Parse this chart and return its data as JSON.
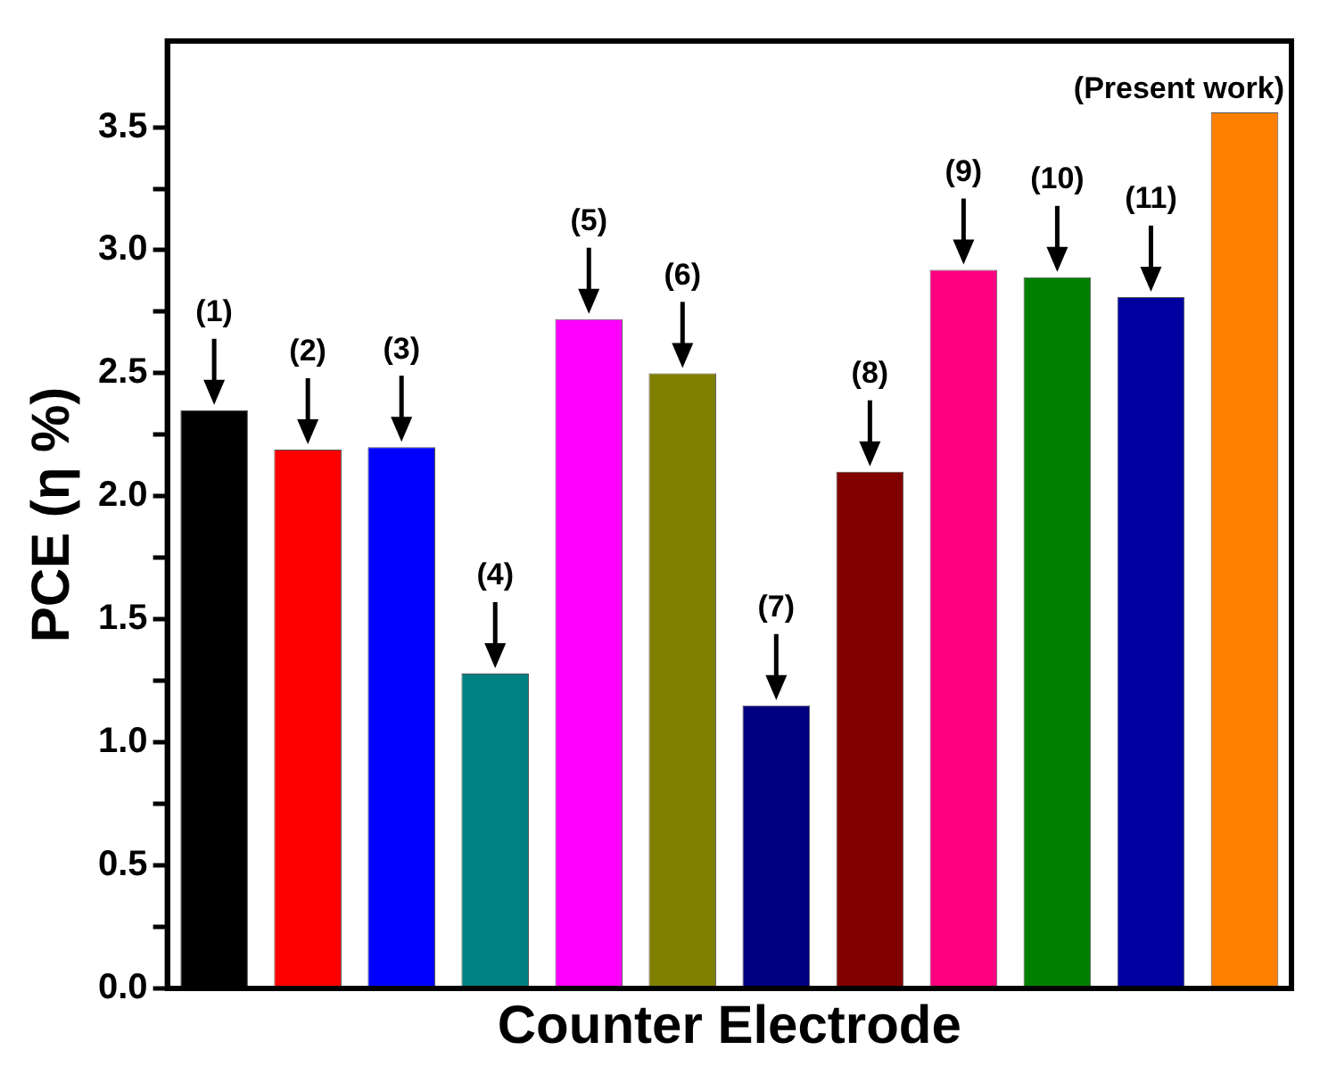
{
  "chart_data": {
    "type": "bar",
    "xlabel": "Counter Electrode",
    "ylabel": "PCE (η %)",
    "categories": [
      null,
      null,
      null,
      null,
      null,
      null,
      null,
      null,
      null,
      null,
      null,
      null
    ],
    "values": [
      2.35,
      2.19,
      2.2,
      1.28,
      2.72,
      2.5,
      1.15,
      2.1,
      2.92,
      2.89,
      2.81,
      3.56
    ],
    "colors": [
      "#000000",
      "#ff0000",
      "#0000ff",
      "#008080",
      "#ff00ff",
      "#808000",
      "#000080",
      "#800000",
      "#ff0080",
      "#008000",
      "#0000a0",
      "#ff8000"
    ],
    "ylim": [
      0,
      3.85
    ],
    "yticks": [
      {
        "value": 0,
        "label": "0.0"
      },
      {
        "value": 0.25,
        "label": null
      },
      {
        "value": 0.5,
        "label": "0.5"
      },
      {
        "value": 0.75,
        "label": null
      },
      {
        "value": 1,
        "label": "1.0"
      },
      {
        "value": 1.25,
        "label": null
      },
      {
        "value": 1.5,
        "label": "1.5"
      },
      {
        "value": 1.75,
        "label": null
      },
      {
        "value": 2,
        "label": "2.0"
      },
      {
        "value": 2.25,
        "label": null
      },
      {
        "value": 2.5,
        "label": "2.5"
      },
      {
        "value": 2.75,
        "label": null
      },
      {
        "value": 3,
        "label": "3.0"
      },
      {
        "value": 3.25,
        "label": null
      },
      {
        "value": 3.5,
        "label": "3.5"
      }
    ],
    "annotations": [
      "(1)",
      "(2)",
      "(3)",
      "(4)",
      "(5)",
      "(6)",
      "(7)",
      "(8)",
      "(9)",
      "(10)",
      "(11)",
      "(Present work)"
    ],
    "grid": false,
    "legend": false
  }
}
